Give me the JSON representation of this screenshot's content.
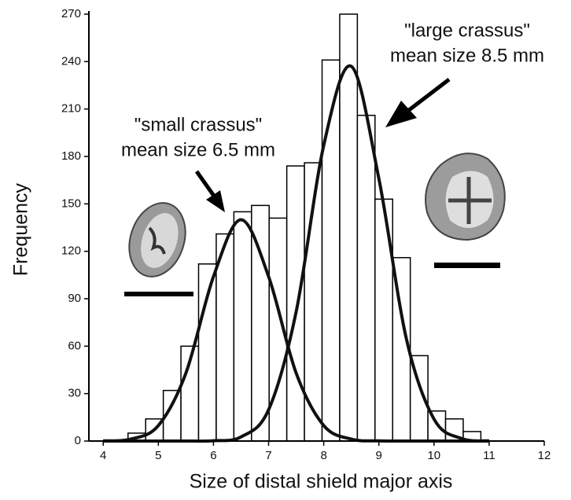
{
  "chart_data": {
    "type": "histogram",
    "xlabel": "Size of distal shield major axis",
    "ylabel": "Frequency",
    "bins": [
      4.45,
      4.77,
      5.09,
      5.41,
      5.73,
      6.05,
      6.37,
      6.69,
      7.01,
      7.33,
      7.65,
      7.97,
      8.29,
      8.61,
      8.93,
      9.25,
      9.57,
      9.89,
      10.21,
      10.53,
      10.85
    ],
    "values": [
      5,
      14,
      32,
      60,
      112,
      131,
      145,
      149,
      141,
      174,
      176,
      241,
      270,
      206,
      153,
      116,
      54,
      19,
      14,
      6
    ],
    "color": "#ffffff",
    "xlim": [
      3.74,
      12
    ],
    "ylim": [
      0,
      270
    ],
    "xticks": [
      4,
      5,
      6,
      7,
      8,
      9,
      10,
      11,
      12
    ],
    "yticks": [
      0,
      30,
      60,
      90,
      120,
      150,
      180,
      210,
      240,
      270
    ],
    "curves": [
      {
        "x": [
          4,
          4.5,
          5,
          5.5,
          6,
          6.5,
          7,
          7.5,
          8,
          8.5,
          9,
          9.5,
          10,
          10.5,
          11
        ],
        "values": [
          0.1,
          1.2,
          9.8,
          43,
          104,
          140,
          104,
          43,
          9.8,
          1.2,
          0.1,
          0,
          0,
          0,
          0
        ],
        "color": "#111111"
      },
      {
        "x": [
          4,
          4.5,
          5,
          5.5,
          6,
          6.5,
          7,
          7.5,
          8,
          8.5,
          9,
          9.5,
          10,
          10.5,
          11
        ],
        "values": [
          0,
          0,
          0,
          0,
          0.2,
          2.6,
          19.8,
          81.8,
          187,
          237,
          166,
          64.5,
          13.9,
          1.6,
          0.1
        ],
        "color": "#111111"
      }
    ],
    "annotations": [
      {
        "lines": [
          "\"small crassus\"",
          "mean size 6.5 mm"
        ]
      },
      {
        "lines": [
          "\"large crassus\"",
          "mean size 8.5 mm"
        ]
      }
    ]
  }
}
